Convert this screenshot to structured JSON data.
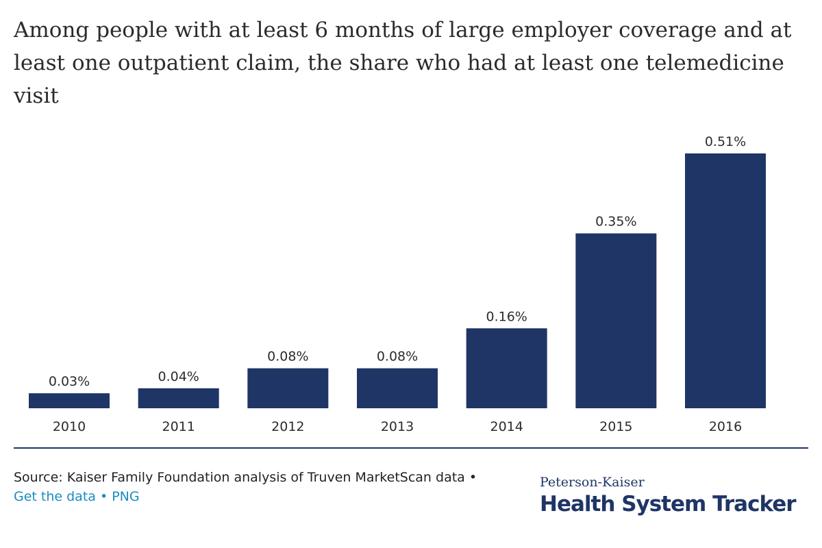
{
  "chart_data": {
    "type": "bar",
    "title": "Among people with at least 6 months of large employer coverage and at least one outpatient claim, the share who had at least one telemedicine visit",
    "categories": [
      "2010",
      "2011",
      "2012",
      "2013",
      "2014",
      "2015",
      "2016"
    ],
    "values": [
      0.03,
      0.04,
      0.08,
      0.08,
      0.16,
      0.35,
      0.51
    ],
    "value_labels": [
      "0.03%",
      "0.04%",
      "0.08%",
      "0.08%",
      "0.16%",
      "0.35%",
      "0.51%"
    ],
    "xlabel": "",
    "ylabel": "",
    "ylim": [
      0,
      0.51
    ],
    "grid": false,
    "colors": {
      "bar": "#1f3566"
    }
  },
  "footer": {
    "source": "Source: Kaiser Family Foundation analysis of Truven MarketScan data",
    "separator": " • ",
    "get_data": "Get the data",
    "png": "PNG"
  },
  "brand": {
    "sub": "Peterson-Kaiser",
    "main": "Health System Tracker"
  },
  "colors": {
    "bar": "#1f3566",
    "link": "#1a8cc0",
    "brand": "#1f3566"
  }
}
